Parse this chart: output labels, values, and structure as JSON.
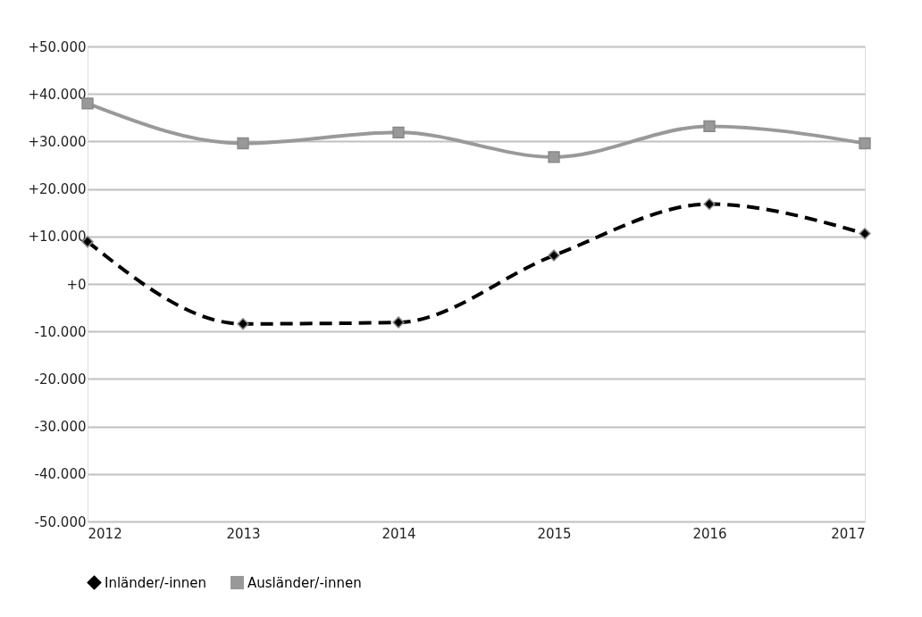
{
  "chart_data": {
    "type": "line",
    "x": [
      2012,
      2013,
      2014,
      2015,
      2016,
      2017
    ],
    "xlim": [
      2012,
      2017
    ],
    "xticks": [
      2012,
      2013,
      2014,
      2015,
      2016,
      2017
    ],
    "ylim": [
      -50000,
      50000
    ],
    "yticks": [
      {
        "value": -50000,
        "label": "-50.000"
      },
      {
        "value": -40000,
        "label": "-40.000"
      },
      {
        "value": -30000,
        "label": "-30.000"
      },
      {
        "value": -20000,
        "label": "-20.000"
      },
      {
        "value": -10000,
        "label": "-10.000"
      },
      {
        "value": 0,
        "label": "+0"
      },
      {
        "value": 10000,
        "label": "+10.000"
      },
      {
        "value": 20000,
        "label": "+20.000"
      },
      {
        "value": 30000,
        "label": "+30.000"
      },
      {
        "value": 40000,
        "label": "+40.000"
      },
      {
        "value": 50000,
        "label": "+50.000"
      }
    ],
    "grid": "y",
    "legend": "bottom",
    "series": [
      {
        "name": "Inländer/-innen",
        "color": "#000000",
        "marker": "diamond",
        "line_style": "dashed",
        "values": [
          8900,
          -8400,
          -8100,
          6000,
          16800,
          10600
        ]
      },
      {
        "name": "Ausländer/-innen",
        "color": "#999999",
        "marker": "square",
        "line_style": "solid",
        "values": [
          38000,
          29600,
          31900,
          26700,
          33200,
          29600
        ]
      }
    ]
  }
}
